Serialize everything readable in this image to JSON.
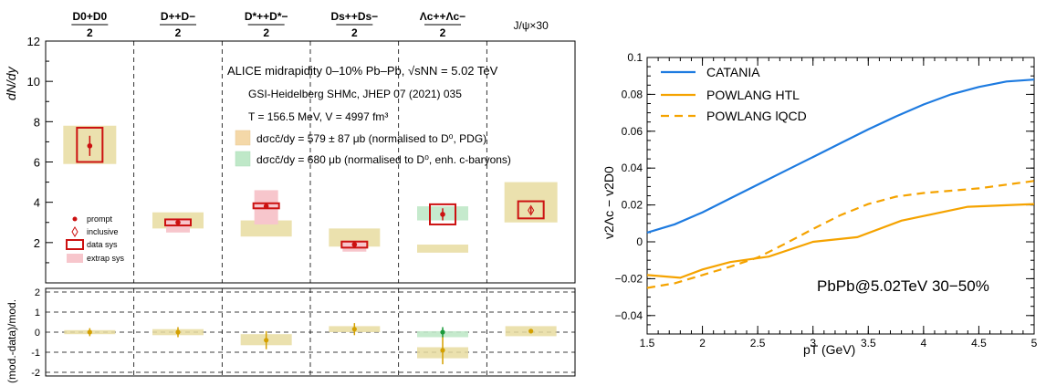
{
  "chart_data": [
    {
      "type": "scatter",
      "categories": [
        {
          "num": "D0+D0",
          "den": "2"
        },
        {
          "num": "D++D−",
          "den": "2"
        },
        {
          "num": "D*++D*−",
          "den": "2"
        },
        {
          "num": "Ds++Ds−",
          "den": "2"
        },
        {
          "num": "Λc++Λc−",
          "den": "2"
        },
        {
          "num": "J/ψ×30",
          "den": ""
        }
      ],
      "ylabel": "dN/dy",
      "ylim": [
        0,
        12
      ],
      "yticks": [
        2,
        4,
        6,
        8,
        10,
        12
      ],
      "header_text": "ALICE midrapidity 0–10% Pb–Pb, √sNN = 5.02 TeV",
      "model_legend": [
        "GSI-Heidelberg SHMc, JHEP 07 (2021) 035",
        "T = 156.5 MeV, V = 4997 fm³",
        "dσcc̄/dy = 579 ± 87 μb (normalised to D⁰, PDG)",
        "dσcc̄/dy = 680 μb (normalised to D⁰, enh. c-baryons)"
      ],
      "marker_legend": [
        "prompt",
        "inclusive",
        "data sys",
        "extrap sys"
      ],
      "colors": {
        "model_pdg": "#e8dca0",
        "model_enh": "#bfe8c8",
        "data_sys": "#cc1111",
        "extrap": "#f7c6cc",
        "ratio_point": "#d4a000"
      },
      "data": [
        {
          "value": 6.8,
          "stat": 0.5,
          "sys": [
            6.0,
            7.7
          ],
          "marker": "prompt"
        },
        {
          "value": 3.0,
          "stat": 0.15,
          "sys": [
            2.85,
            3.15
          ],
          "extrap": [
            2.5,
            3.2
          ],
          "marker": "prompt"
        },
        {
          "value": 3.8,
          "stat": 0.1,
          "sys": [
            3.7,
            3.95
          ],
          "extrap": [
            2.9,
            4.6
          ],
          "marker": "prompt"
        },
        {
          "value": 1.9,
          "stat": 0.1,
          "sys": [
            1.75,
            2.05
          ],
          "extrap": [
            1.55,
            2.1
          ],
          "marker": "prompt"
        },
        {
          "value": 3.4,
          "stat": 0.3,
          "sys": [
            2.9,
            3.9
          ],
          "marker": "prompt"
        },
        {
          "value": 3.6,
          "stat": 0.15,
          "sys": [
            3.2,
            4.05
          ],
          "marker": "inclusive"
        }
      ],
      "model_pdg_band": [
        [
          5.9,
          7.8
        ],
        [
          2.7,
          3.5
        ],
        [
          2.3,
          3.1
        ],
        [
          1.8,
          2.7
        ],
        [
          1.5,
          1.9
        ],
        [
          3.0,
          5.0
        ]
      ],
      "model_enh_band": [
        [
          null,
          null
        ],
        [
          null,
          null
        ],
        [
          null,
          null
        ],
        [
          null,
          null
        ],
        [
          3.1,
          3.8
        ],
        [
          null,
          null
        ]
      ],
      "ratio_panel": {
        "ylabel": "(mod.-data)/mod.",
        "ylim": [
          -2,
          2
        ],
        "yticks": [
          -2,
          -1,
          0,
          1,
          2
        ],
        "values": [
          0.0,
          0.0,
          -0.4,
          0.15,
          -0.9,
          0.05
        ],
        "errors": [
          0.2,
          0.25,
          0.45,
          0.3,
          0.7,
          0.1
        ],
        "enh_value": 0.0,
        "bands_pdg": [
          [
            -0.1,
            0.1
          ],
          [
            -0.15,
            0.15
          ],
          [
            -0.65,
            -0.1
          ],
          [
            0.0,
            0.3
          ],
          [
            -1.3,
            -0.75
          ],
          [
            -0.2,
            0.3
          ]
        ],
        "bands_enh": [
          [
            null,
            null
          ],
          [
            null,
            null
          ],
          [
            null,
            null
          ],
          [
            null,
            null
          ],
          [
            -0.25,
            0.05
          ],
          [
            null,
            null
          ]
        ]
      }
    },
    {
      "type": "line",
      "xlabel": "pT (GeV)",
      "ylabel": "v2Λc − v2D0",
      "xlim": [
        1.5,
        5
      ],
      "ylim": [
        -0.05,
        0.1
      ],
      "xticks": [
        "1.5",
        "2",
        "2.5",
        "3",
        "3.5",
        "4",
        "4.5",
        "5"
      ],
      "yticks": [
        "−0.04",
        "−0.02",
        "0",
        "0.02",
        "0.04",
        "0.06",
        "0.08",
        "0.1"
      ],
      "annotation": "PbPb@5.02TeV 30−50%",
      "legend_position": "top-left",
      "series": [
        {
          "name": "CATANIA",
          "color": "#1e7be0",
          "style": "solid",
          "x": [
            1.5,
            1.75,
            2.0,
            2.25,
            2.5,
            2.75,
            3.0,
            3.25,
            3.5,
            3.75,
            4.0,
            4.25,
            4.5,
            4.75,
            5.0
          ],
          "y": [
            0.005,
            0.0095,
            0.016,
            0.0235,
            0.031,
            0.0385,
            0.046,
            0.0535,
            0.061,
            0.068,
            0.0745,
            0.08,
            0.084,
            0.087,
            0.088
          ]
        },
        {
          "name": "POWLANG HTL",
          "color": "#f5a300",
          "style": "solid",
          "x": [
            1.5,
            1.8,
            2.0,
            2.25,
            2.6,
            3.0,
            3.4,
            3.8,
            4.4,
            5.0
          ],
          "y": [
            -0.018,
            -0.0195,
            -0.015,
            -0.011,
            -0.008,
            0.0,
            0.0025,
            0.0115,
            0.019,
            0.0205
          ]
        },
        {
          "name": "POWLANG lQCD",
          "color": "#f5a300",
          "style": "dashed",
          "x": [
            1.5,
            1.75,
            2.0,
            2.25,
            2.5,
            2.75,
            3.0,
            3.25,
            3.5,
            3.75,
            4.0,
            4.5,
            5.0
          ],
          "y": [
            -0.025,
            -0.0225,
            -0.018,
            -0.0135,
            -0.0085,
            -0.001,
            0.007,
            0.0145,
            0.0205,
            0.0245,
            0.0265,
            0.029,
            0.033
          ]
        }
      ]
    }
  ]
}
